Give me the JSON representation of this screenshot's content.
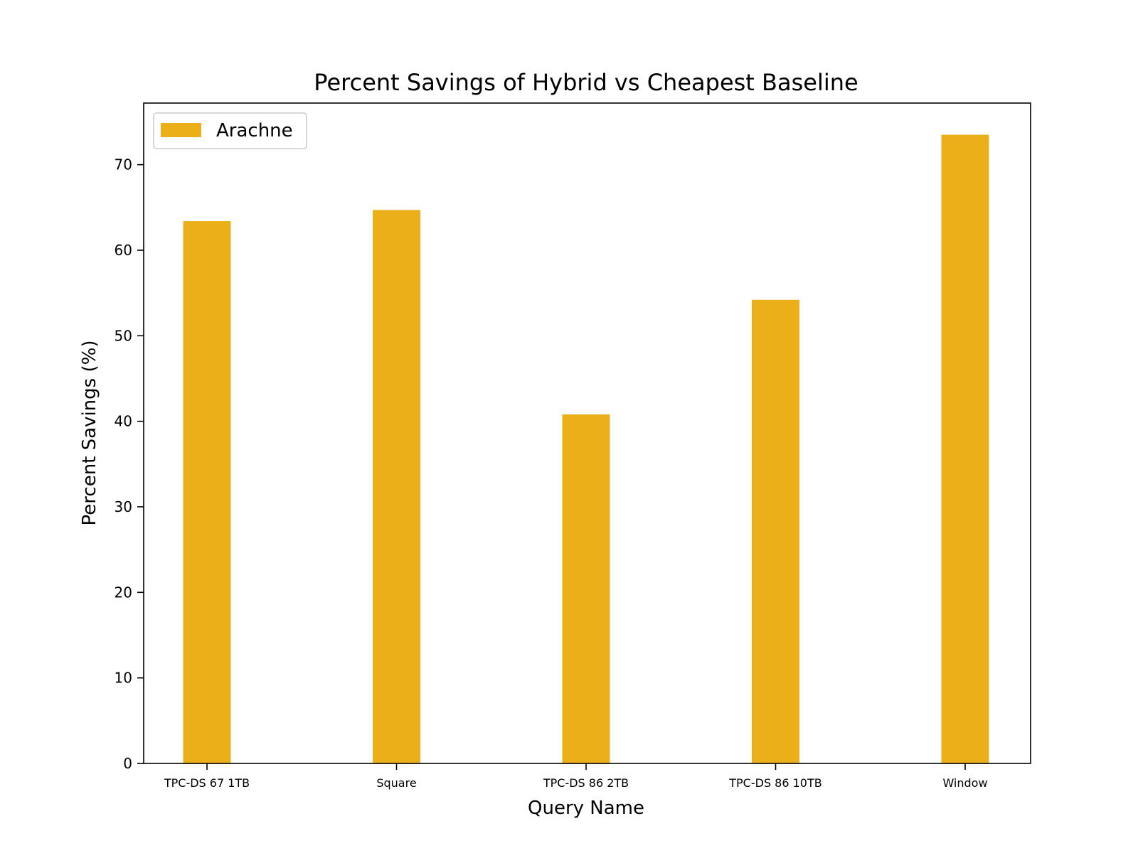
{
  "chart_data": {
    "type": "bar",
    "title": "Percent Savings of Hybrid vs Cheapest Baseline",
    "xlabel": "Query Name",
    "ylabel": "Percent Savings (%)",
    "categories": [
      "TPC-DS 67 1TB",
      "Square",
      "TPC-DS 86 2TB",
      "TPC-DS 86 10TB",
      "Window"
    ],
    "series": [
      {
        "name": "Arachne",
        "values": [
          63.4,
          64.7,
          40.8,
          54.2,
          73.5
        ],
        "color": "#EAAF19"
      }
    ],
    "ylim": [
      0,
      77.2
    ],
    "yticks": [
      0,
      10,
      20,
      30,
      40,
      50,
      60,
      70
    ],
    "grid": false,
    "legend_position": "top-left"
  }
}
